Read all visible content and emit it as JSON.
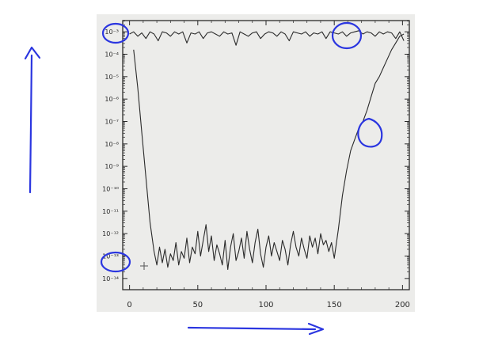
{
  "colors": {
    "paper": "#ececea",
    "ink": "#2a2a2a",
    "annotation": "#2b36e0"
  },
  "chart_data": {
    "type": "line",
    "title": "",
    "xlabel": "",
    "ylabel": "",
    "xlim": [
      -5,
      205
    ],
    "ylim_exponent": [
      -14.5,
      -2.5
    ],
    "y_scale": "log",
    "grid": false,
    "legend": "none",
    "x_ticks": [
      0,
      50,
      100,
      150,
      200
    ],
    "x_tick_labels": [
      "0",
      "50",
      "100",
      "150",
      "200"
    ],
    "y_ticks_exponent": [
      -3,
      -4,
      -5,
      -6,
      -7,
      -8,
      -9,
      -10,
      -11,
      -12,
      -13,
      -14
    ],
    "y_tick_labels": [
      "10⁻³",
      "10⁻⁴",
      "10⁻⁵",
      "10⁻⁶",
      "10⁻⁷",
      "10⁻⁸",
      "10⁻⁹",
      "10⁻¹⁰",
      "10⁻¹¹",
      "10⁻¹²",
      "10⁻¹³",
      "10⁻¹⁴"
    ],
    "series": [
      {
        "x": [
          0,
          3,
          6,
          9,
          12,
          15,
          18,
          21,
          24,
          27,
          30,
          33,
          36,
          39,
          42,
          45,
          48,
          51,
          54,
          57,
          60,
          63,
          66,
          69,
          72,
          75,
          78,
          81,
          84,
          87,
          90,
          93,
          96,
          99,
          102,
          105,
          108,
          111,
          114,
          117,
          120,
          123,
          126,
          129,
          132,
          135,
          138,
          141,
          144,
          147,
          150,
          153,
          156,
          159,
          162,
          165,
          168,
          171,
          174,
          177,
          180,
          183,
          186,
          189,
          192,
          195,
          198,
          201
        ],
        "y_exponent": [
          -3.1,
          -3.0,
          -3.2,
          -3.05,
          -3.3,
          -3.0,
          -3.1,
          -3.4,
          -3.0,
          -3.05,
          -3.2,
          -3.0,
          -3.1,
          -3.0,
          -3.5,
          -3.05,
          -3.1,
          -3.0,
          -3.3,
          -3.05,
          -3.0,
          -3.1,
          -3.2,
          -3.0,
          -3.1,
          -3.05,
          -3.6,
          -3.0,
          -3.1,
          -3.2,
          -3.05,
          -3.0,
          -3.3,
          -3.1,
          -3.0,
          -3.05,
          -3.2,
          -3.0,
          -3.1,
          -3.4,
          -3.0,
          -3.05,
          -3.1,
          -3.0,
          -3.2,
          -3.05,
          -3.1,
          -3.0,
          -3.3,
          -3.0,
          -3.05,
          -3.1,
          -3.0,
          -3.2,
          -3.05,
          -3.0,
          -2.95,
          -3.1,
          -3.0,
          -3.05,
          -3.2,
          -3.0,
          -3.1,
          -3.0,
          -3.05,
          -3.3,
          -3.0,
          -3.4
        ]
      },
      {
        "x": [
          3,
          6,
          9,
          12,
          15,
          18,
          20,
          22,
          24,
          26,
          28,
          30,
          32,
          34,
          36,
          38,
          40,
          42,
          44,
          46,
          48,
          50,
          52,
          54,
          56,
          58,
          60,
          62,
          64,
          66,
          68,
          70,
          72,
          74,
          76,
          78,
          80,
          82,
          84,
          86,
          88,
          90,
          92,
          94,
          96,
          98,
          100,
          102,
          104,
          106,
          108,
          110,
          112,
          114,
          116,
          118,
          120,
          122,
          124,
          126,
          128,
          130,
          132,
          134,
          136,
          138,
          140,
          142,
          144,
          146,
          148,
          150,
          153,
          156,
          159,
          162,
          165,
          168,
          171,
          174,
          177,
          180,
          183,
          186,
          189,
          192,
          195,
          198,
          201
        ],
        "y_exponent": [
          -3.8,
          -5.5,
          -7.5,
          -9.5,
          -11.5,
          -12.8,
          -13.4,
          -12.6,
          -13.3,
          -12.7,
          -13.5,
          -12.9,
          -13.2,
          -12.4,
          -13.4,
          -12.8,
          -13.1,
          -12.2,
          -13.3,
          -12.6,
          -12.9,
          -11.9,
          -13.0,
          -12.3,
          -11.6,
          -12.8,
          -12.1,
          -13.2,
          -12.5,
          -12.9,
          -13.4,
          -12.3,
          -13.6,
          -12.6,
          -12.0,
          -13.2,
          -12.8,
          -12.2,
          -13.1,
          -11.9,
          -12.7,
          -13.3,
          -12.4,
          -11.8,
          -12.9,
          -13.5,
          -12.6,
          -12.1,
          -13.0,
          -12.4,
          -12.8,
          -13.2,
          -12.3,
          -12.7,
          -13.4,
          -12.5,
          -11.9,
          -12.6,
          -13.0,
          -12.2,
          -12.7,
          -13.1,
          -12.1,
          -12.6,
          -12.2,
          -12.9,
          -12.0,
          -12.5,
          -12.3,
          -12.8,
          -12.4,
          -13.1,
          -11.8,
          -10.3,
          -9.2,
          -8.3,
          -7.8,
          -7.3,
          -7.0,
          -6.5,
          -5.9,
          -5.3,
          -5.0,
          -4.6,
          -4.2,
          -3.8,
          -3.5,
          -3.2,
          -3.1
        ]
      }
    ]
  }
}
